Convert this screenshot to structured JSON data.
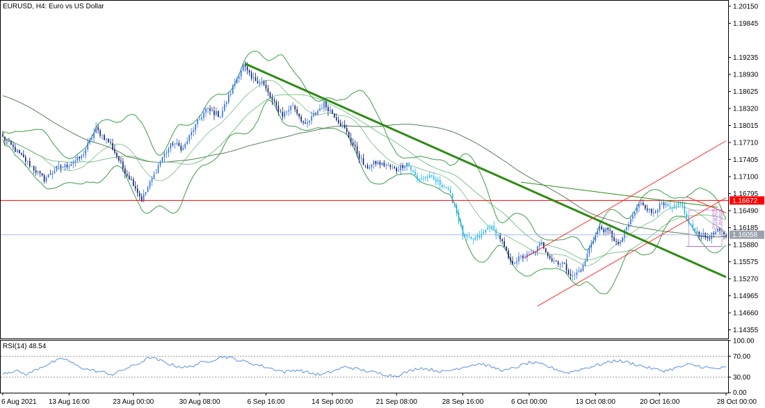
{
  "header": {
    "title": "EURUSD, H4:  Euro vs US Dollar"
  },
  "rsi_panel": {
    "label": "RSI(14) 48.54"
  },
  "colors": {
    "bull_candle": "#2f6fe0",
    "bear_candle": "#0a1a6a",
    "cyan_candle": "#18b7f0",
    "trendline": "#2d8a12",
    "channel": "#ff2a2a",
    "support": "#ff0000",
    "current_price": "#a7b9e8",
    "bollinger": "#3c9b4a",
    "ma_slow": "#567d5a",
    "ma_mid": "#7cc48a",
    "rsi_line": "#5b8fe0",
    "fib": "#b76ad6",
    "price_tag_red_bg": "#ff0000",
    "price_tag_gray_bg": "#9aa3ad"
  },
  "chart_data": {
    "type": "candlestick",
    "symbol": "EURUSD",
    "timeframe": "H4",
    "x_labels": [
      "6 Aug 2021",
      "13 Aug 16:00",
      "23 Aug 00:00",
      "30 Aug 08:00",
      "6 Sep 16:00",
      "14 Sep 00:00",
      "21 Sep 08:00",
      "28 Sep 16:00",
      "6 Oct 00:00",
      "13 Oct 08:00",
      "20 Oct 16:00",
      "28 Oct 00:00"
    ],
    "y_ticks": [
      1.2015,
      1.19845,
      1.19235,
      1.1893,
      1.18625,
      1.1832,
      1.18015,
      1.1771,
      1.17405,
      1.171,
      1.16795,
      1.1649,
      1.16185,
      1.1588,
      1.15575,
      1.1527,
      1.14965,
      1.1466,
      1.14355
    ],
    "y_tick_labels": [
      "1.20150",
      "1.19845",
      "1.19235",
      "1.18930",
      "1.18625",
      "1.18320",
      "1.18015",
      "1.17710",
      "1.17405",
      "1.17100",
      "1.16795",
      "1.16490",
      "1.16185",
      "1.15880",
      "1.15575",
      "1.15270",
      "1.14965",
      "1.14660",
      "1.14355"
    ],
    "price_range": [
      1.142,
      1.2025
    ],
    "support_level": {
      "value": 1.16672,
      "label": "1.16672"
    },
    "current_price": {
      "value": 1.16058,
      "label": "1.16058"
    },
    "fib_labels": [
      "61.8",
      "50.0",
      "38.2",
      "23.6",
      "0.0"
    ],
    "close_path": [
      [
        0,
        1.178
      ],
      [
        12,
        1.1735
      ],
      [
        20,
        1.1705
      ],
      [
        26,
        1.1725
      ],
      [
        30,
        1.1728
      ],
      [
        38,
        1.1745
      ],
      [
        45,
        1.1795
      ],
      [
        52,
        1.1768
      ],
      [
        58,
        1.1725
      ],
      [
        63,
        1.1698
      ],
      [
        67,
        1.1668
      ],
      [
        72,
        1.1705
      ],
      [
        77,
        1.1745
      ],
      [
        82,
        1.177
      ],
      [
        87,
        1.176
      ],
      [
        92,
        1.1795
      ],
      [
        98,
        1.183
      ],
      [
        105,
        1.182
      ],
      [
        111,
        1.187
      ],
      [
        116,
        1.191
      ],
      [
        120,
        1.1885
      ],
      [
        125,
        1.188
      ],
      [
        130,
        1.1845
      ],
      [
        135,
        1.182
      ],
      [
        140,
        1.1838
      ],
      [
        146,
        1.18
      ],
      [
        150,
        1.182
      ],
      [
        155,
        1.184
      ],
      [
        160,
        1.182
      ],
      [
        165,
        1.1795
      ],
      [
        170,
        1.176
      ],
      [
        175,
        1.1725
      ],
      [
        180,
        1.1735
      ],
      [
        185,
        1.173
      ],
      [
        190,
        1.1722
      ],
      [
        195,
        1.1735
      ],
      [
        200,
        1.1705
      ],
      [
        205,
        1.171
      ],
      [
        210,
        1.17
      ],
      [
        214,
        1.169
      ],
      [
        218,
        1.166
      ],
      [
        222,
        1.1605
      ],
      [
        226,
        1.1595
      ],
      [
        231,
        1.1605
      ],
      [
        235,
        1.1622
      ],
      [
        240,
        1.16
      ],
      [
        245,
        1.1555
      ],
      [
        250,
        1.1565
      ],
      [
        255,
        1.157
      ],
      [
        260,
        1.159
      ],
      [
        265,
        1.156
      ],
      [
        270,
        1.1555
      ],
      [
        275,
        1.153
      ],
      [
        280,
        1.1548
      ],
      [
        284,
        1.1592
      ],
      [
        288,
        1.1618
      ],
      [
        293,
        1.161
      ],
      [
        297,
        1.1585
      ],
      [
        300,
        1.161
      ],
      [
        304,
        1.164
      ],
      [
        308,
        1.1665
      ],
      [
        313,
        1.1645
      ],
      [
        318,
        1.166
      ],
      [
        323,
        1.165
      ],
      [
        327,
        1.1665
      ],
      [
        331,
        1.1625
      ],
      [
        335,
        1.161
      ],
      [
        340,
        1.16
      ],
      [
        345,
        1.1612
      ],
      [
        349,
        1.1605
      ]
    ],
    "rsi": {
      "label": "RSI(14) 48.54",
      "value": 48.54,
      "levels": [
        70,
        30
      ],
      "y_ticks": [
        100,
        70,
        30,
        0
      ],
      "y_tick_labels": [
        "100.00",
        "70.00",
        "30.00",
        "0.00"
      ],
      "values": [
        38,
        42,
        35,
        48,
        58,
        66,
        52,
        44,
        40,
        35,
        46,
        55,
        68,
        60,
        52,
        48,
        56,
        62,
        70,
        64,
        58,
        52,
        46,
        40,
        44,
        38,
        34,
        42,
        50,
        45,
        40,
        36,
        32,
        40,
        48,
        44,
        40,
        46,
        52,
        56,
        48,
        42,
        50,
        58,
        54,
        46,
        38,
        44,
        50,
        56,
        62,
        58,
        52,
        46,
        42,
        48,
        54,
        50,
        46,
        48
      ]
    }
  }
}
